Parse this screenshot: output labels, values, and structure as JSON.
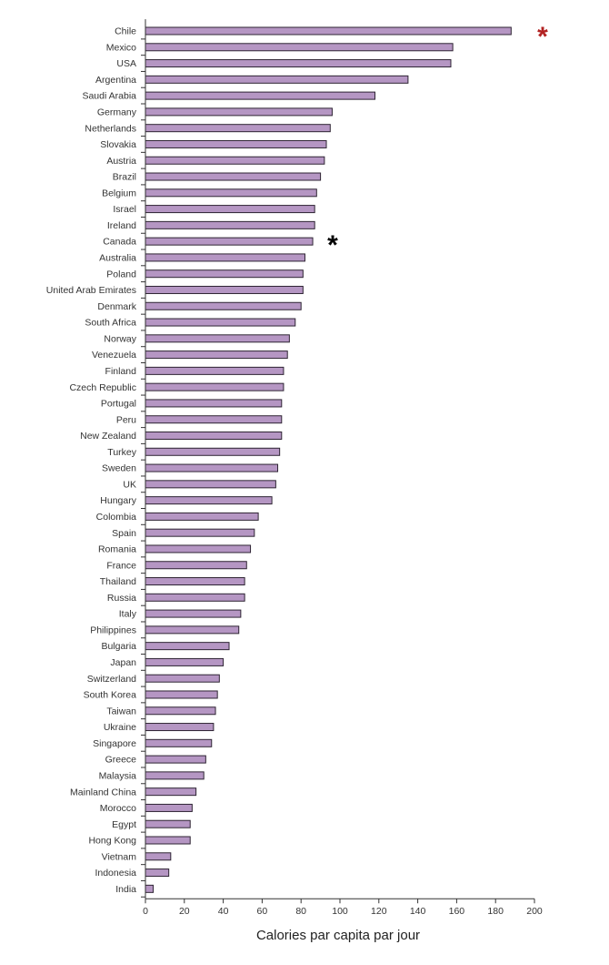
{
  "chart_data": {
    "type": "bar",
    "orientation": "horizontal",
    "xlabel": "Calories par capita par jour",
    "xlim": [
      0,
      200
    ],
    "xticks": [
      "0",
      "20",
      "40",
      "60",
      "80",
      "100",
      "120",
      "140",
      "160",
      "180",
      "200"
    ],
    "grid": false,
    "bar_color": "#b596c3",
    "categories": [
      "Chile",
      "Mexico",
      "USA",
      "Argentina",
      "Saudi Arabia",
      "Germany",
      "Netherlands",
      "Slovakia",
      "Austria",
      "Brazil",
      "Belgium",
      "Israel",
      "Ireland",
      "Canada",
      "Australia",
      "Poland",
      "United Arab Emirates",
      "Denmark",
      "South Africa",
      "Norway",
      "Venezuela",
      "Finland",
      "Czech Republic",
      "Portugal",
      "Peru",
      "New Zealand",
      "Turkey",
      "Sweden",
      "UK",
      "Hungary",
      "Colombia",
      "Spain",
      "Romania",
      "France",
      "Thailand",
      "Russia",
      "Italy",
      "Philippines",
      "Bulgaria",
      "Japan",
      "Switzerland",
      "South Korea",
      "Taiwan",
      "Ukraine",
      "Singapore",
      "Greece",
      "Malaysia",
      "Mainland China",
      "Morocco",
      "Egypt",
      "Hong Kong",
      "Vietnam",
      "Indonesia",
      "India"
    ],
    "values": [
      188,
      158,
      157,
      135,
      118,
      96,
      95,
      93,
      92,
      90,
      88,
      87,
      87,
      86,
      82,
      81,
      81,
      80,
      77,
      74,
      73,
      71,
      71,
      70,
      70,
      70,
      69,
      68,
      67,
      65,
      58,
      56,
      54,
      52,
      51,
      51,
      49,
      48,
      43,
      40,
      38,
      37,
      36,
      35,
      34,
      31,
      30,
      26,
      24,
      23,
      23,
      13,
      12,
      4
    ],
    "annotations": [
      {
        "category": "Chile",
        "text": "*",
        "color": "#b22222"
      },
      {
        "category": "Canada",
        "text": "*",
        "color": "#000000"
      }
    ]
  }
}
